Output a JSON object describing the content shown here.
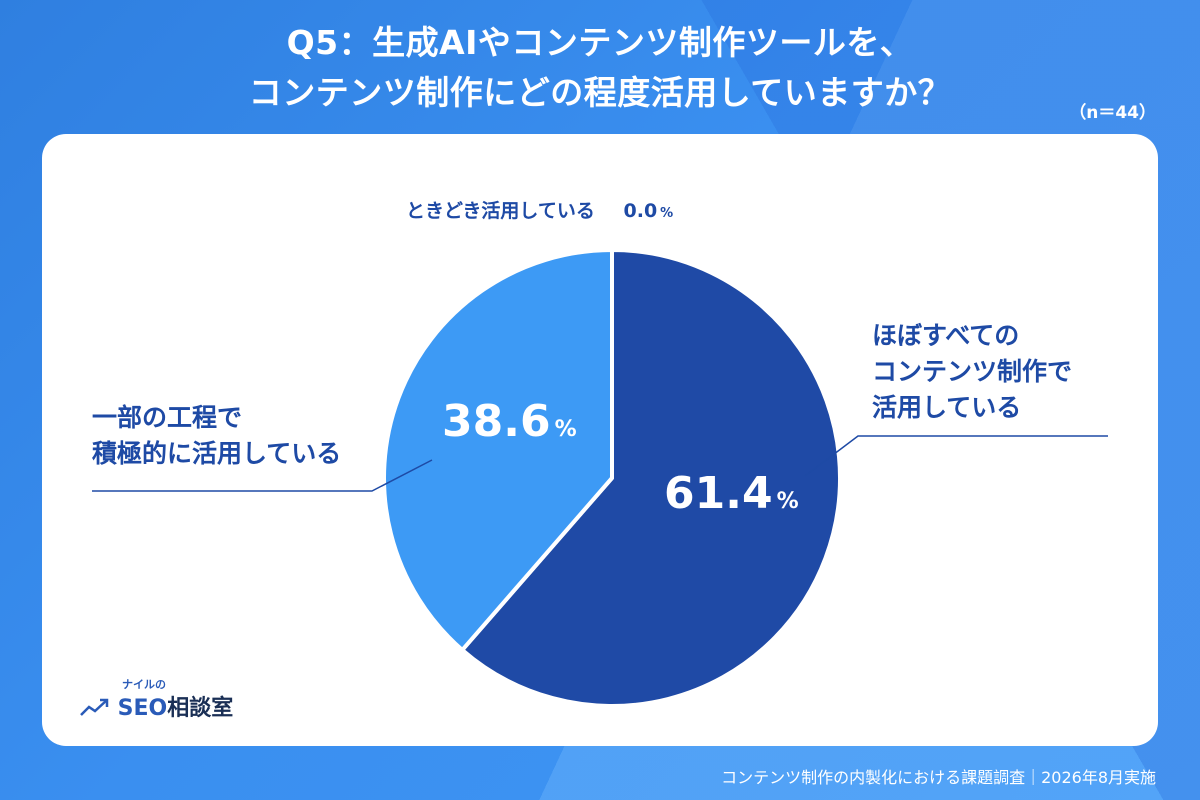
{
  "title": {
    "line1": "Q5：生成AIやコンテンツ制作ツールを、",
    "line2": "コンテンツ制作にどの程度活用していますか？"
  },
  "sample_size": "（n＝44）",
  "chart_data": {
    "type": "pie",
    "slices": [
      {
        "label_lines": [
          "ほぼすべての",
          "コンテンツ制作で",
          "活用している"
        ],
        "value": 61.4,
        "unit": "%",
        "color": "#1f4aa6"
      },
      {
        "label_lines": [
          "一部の工程で",
          "積極的に活用している"
        ],
        "value": 38.6,
        "unit": "%",
        "color": "#3d9af5"
      },
      {
        "label_lines": [
          "ときどき活用している"
        ],
        "value": 0.0,
        "unit": "%",
        "color": "#6fb6ff"
      }
    ],
    "value_display": [
      "61.4",
      "38.6",
      "0.0"
    ],
    "start_angle_deg": 0,
    "direction": "clockwise"
  },
  "logo": {
    "top": "ナイルの",
    "seo": "SEO",
    "main": "相談室"
  },
  "footer": "コンテンツ制作の内製化における課題調査｜2026年8月実施",
  "colors": {
    "accent_dark": "#1f4aa6",
    "accent_light": "#3d9af5",
    "label_text": "#1e4aa5"
  }
}
